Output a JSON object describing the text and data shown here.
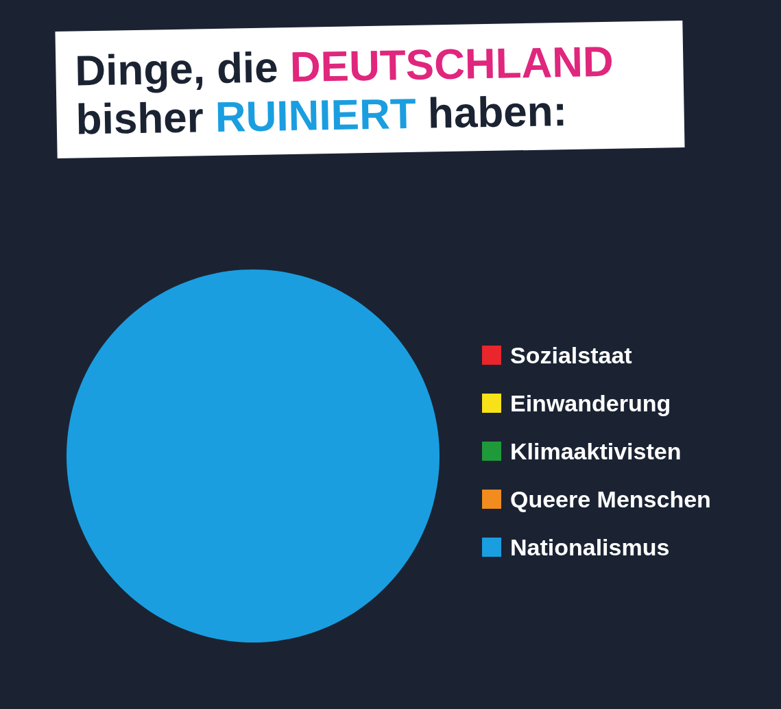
{
  "chart_data": {
    "type": "pie",
    "title": "Dinge, die DEUTSCHLAND bisher RUINIERT haben:",
    "categories": [
      "Sozialstaat",
      "Einwanderung",
      "Klimaaktivisten",
      "Queere Menschen",
      "Nationalismus"
    ],
    "values": [
      0,
      0,
      0,
      0,
      100
    ],
    "colors": [
      "#e8262b",
      "#f7e21a",
      "#1f9a3a",
      "#f28c1e",
      "#1a9ee0"
    ],
    "legend": "right"
  }
}
